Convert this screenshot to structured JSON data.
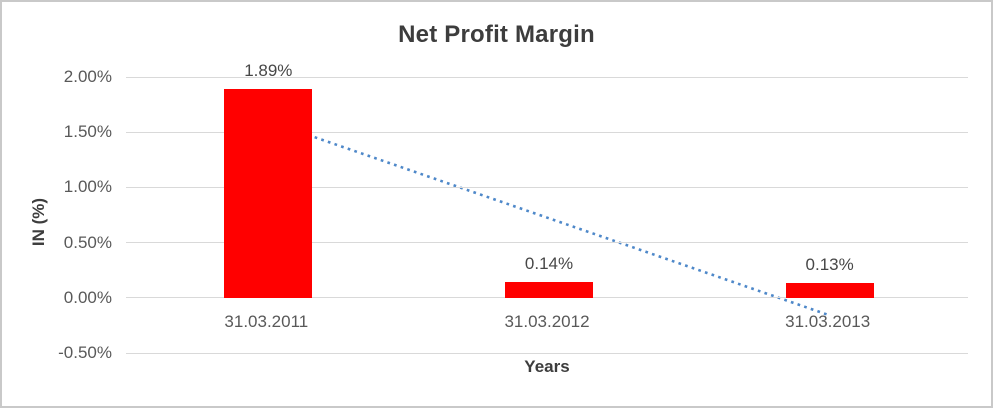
{
  "chart_data": {
    "type": "bar",
    "title": "Net Profit Margin",
    "xlabel": "Years",
    "ylabel": "IN (%)",
    "categories": [
      "31.03.2011",
      "31.03.2012",
      "31.03.2013"
    ],
    "values": [
      1.89,
      0.14,
      0.13
    ],
    "data_labels": [
      "1.89%",
      "0.14%",
      "0.13%"
    ],
    "ylim": [
      -0.5,
      2.0
    ],
    "yticks": [
      2.0,
      1.5,
      1.0,
      0.5,
      0.0,
      -0.5
    ],
    "ytick_labels": [
      "2.00%",
      "1.50%",
      "1.00%",
      "0.50%",
      "0.00%",
      "-0.50%"
    ],
    "grid": true,
    "legend_position": "none",
    "bar_color": "#ff0000",
    "trendline": {
      "type": "linear",
      "line_style": "dotted",
      "color": "#4e88c9",
      "start_category_index": 0,
      "end_category_index": 2,
      "start_value": 1.6,
      "end_value": -0.15
    },
    "colors": {
      "title_text": "#3d3d3d",
      "axis_text": "#595959",
      "data_label_text": "#474747",
      "gridline": "#d9d9d9",
      "frame_border": "#c9c9c9",
      "bar": "#ff0000",
      "trendline": "#4e88c9"
    }
  }
}
